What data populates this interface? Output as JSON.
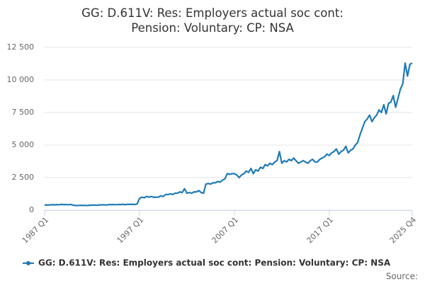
{
  "chart_data": {
    "type": "line",
    "title": "GG: D.611V: Res: Employers actual soc cont: Pension: Voluntary: CP: NSA",
    "source": "Source:",
    "categories": [
      "1987 Q1",
      null,
      null,
      null,
      null,
      null,
      null,
      null,
      null,
      null,
      null,
      null,
      null,
      null,
      null,
      null,
      null,
      null,
      null,
      null,
      null,
      null,
      null,
      null,
      null,
      null,
      null,
      null,
      null,
      null,
      null,
      null,
      null,
      null,
      null,
      null,
      null,
      null,
      null,
      null,
      "1997 Q1",
      null,
      null,
      null,
      null,
      null,
      null,
      null,
      null,
      null,
      null,
      null,
      null,
      null,
      null,
      null,
      null,
      null,
      null,
      null,
      null,
      null,
      null,
      null,
      null,
      null,
      null,
      null,
      null,
      null,
      null,
      null,
      null,
      null,
      null,
      null,
      null,
      null,
      null,
      null,
      "2007 Q1",
      null,
      null,
      null,
      null,
      null,
      null,
      null,
      null,
      null,
      null,
      null,
      null,
      null,
      null,
      null,
      null,
      null,
      null,
      null,
      null,
      null,
      null,
      null,
      null,
      null,
      null,
      null,
      null,
      null,
      null,
      null,
      null,
      null,
      null,
      null,
      null,
      null,
      null,
      null,
      "2017 Q1",
      null,
      null,
      null,
      null,
      null,
      null,
      null,
      null,
      null,
      null,
      null,
      null,
      null,
      null,
      null,
      null,
      null,
      null,
      null,
      null,
      null,
      null,
      null,
      null,
      null,
      null,
      null,
      null,
      null,
      null,
      null,
      null,
      null,
      null,
      "2025 Q4"
    ],
    "series": [
      {
        "name": "GG: D.611V: Res: Employers actual soc cont: Pension: Voluntary: CP: NSA",
        "color": "#1f7bb6",
        "values": [
          380,
          400,
          390,
          420,
          400,
          420,
          410,
          440,
          420,
          430,
          410,
          440,
          380,
          360,
          350,
          370,
          360,
          370,
          350,
          380,
          380,
          390,
          370,
          400,
          400,
          410,
          390,
          420,
          420,
          430,
          410,
          440,
          430,
          440,
          420,
          450,
          440,
          450,
          430,
          470,
          900,
          1000,
          950,
          1050,
          1000,
          1050,
          980,
          1000,
          1000,
          1100,
          1050,
          1200,
          1200,
          1250,
          1200,
          1300,
          1300,
          1400,
          1350,
          1650,
          1300,
          1350,
          1300,
          1400,
          1400,
          1500,
          1350,
          1300,
          2000,
          2050,
          2000,
          2100,
          2100,
          2200,
          2150,
          2300,
          2400,
          2800,
          2750,
          2800,
          2800,
          2700,
          2500,
          2700,
          2800,
          3000,
          2900,
          3200,
          2800,
          3100,
          3000,
          3300,
          3200,
          3500,
          3400,
          3600,
          3500,
          3700,
          3800,
          4500,
          3600,
          3800,
          3700,
          3900,
          3800,
          4000,
          3800,
          3600,
          3700,
          3800,
          3700,
          3600,
          3800,
          3900,
          3700,
          3700,
          3900,
          4000,
          4100,
          4300,
          4200,
          4400,
          4500,
          4700,
          4300,
          4500,
          4600,
          4900,
          4400,
          4600,
          4700,
          5000,
          5200,
          5800,
          6300,
          6800,
          7000,
          7300,
          6800,
          7100,
          7300,
          7700,
          7500,
          8100,
          7400,
          8200,
          8300,
          8800,
          7900,
          8600,
          9300,
          9700,
          11300,
          10300,
          11200,
          11300
        ]
      }
    ],
    "ylim": [
      0,
      12500
    ],
    "yticks": [
      0,
      {
        "value": 2500,
        "label": "2 500"
      },
      {
        "value": 5000,
        "label": "5 000"
      },
      {
        "value": 7500,
        "label": "7 500"
      },
      {
        "value": 10000,
        "label": "10 000"
      },
      {
        "value": 12500,
        "label": "12 500"
      }
    ],
    "grid": true
  }
}
